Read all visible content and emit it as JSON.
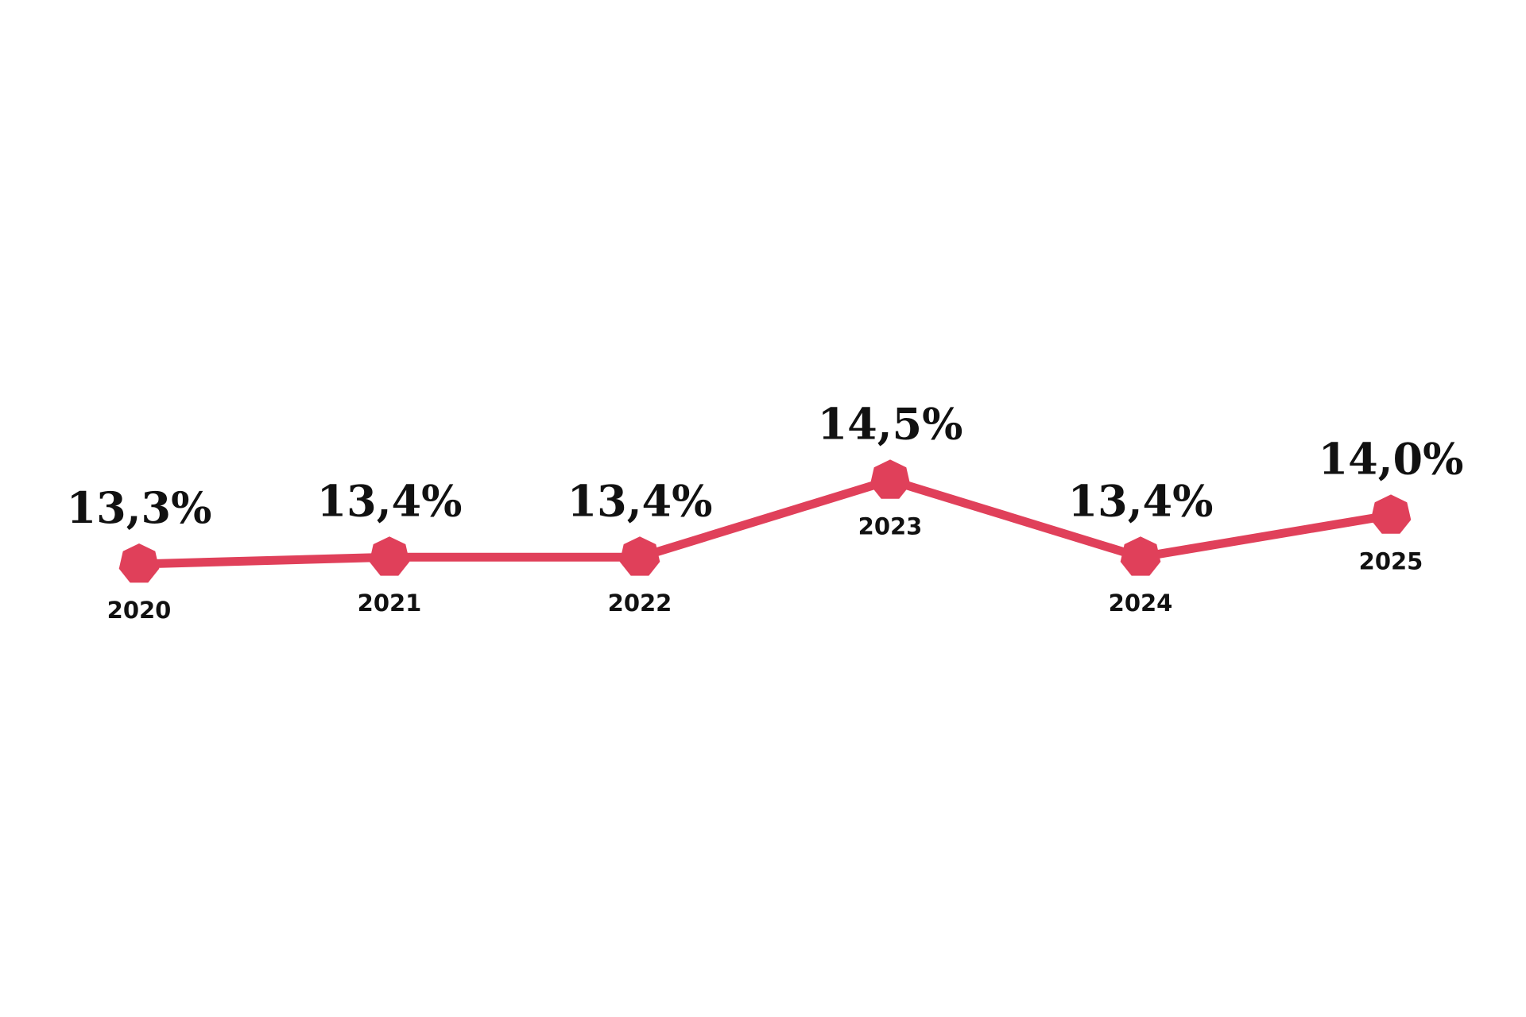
{
  "chart_data": {
    "type": "line",
    "categories": [
      "2020",
      "2021",
      "2022",
      "2023",
      "2024",
      "2025"
    ],
    "values": [
      13.3,
      13.4,
      13.4,
      14.5,
      13.4,
      14.0
    ],
    "value_labels": [
      "13,3%",
      "13,4%",
      "13,4%",
      "14,5%",
      "13,4%",
      "14,0%"
    ],
    "color": "#e0405a"
  }
}
